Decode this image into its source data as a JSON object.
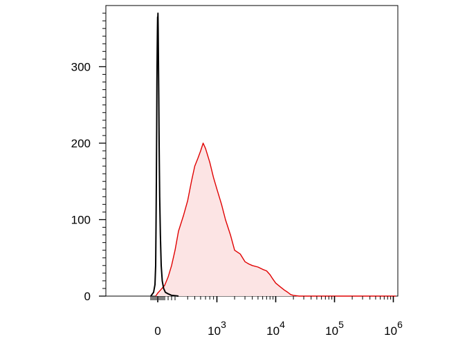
{
  "chart_data": {
    "type": "area",
    "title": "",
    "xlabel": "",
    "ylabel": "",
    "x_scale": "biexponential",
    "xlim": [
      -100,
      1200000
    ],
    "ylim": [
      0,
      380
    ],
    "yticks": [
      {
        "value": 0,
        "label": "0"
      },
      {
        "value": 100,
        "label": "100"
      },
      {
        "value": 200,
        "label": "200"
      },
      {
        "value": 300,
        "label": "300"
      }
    ],
    "xticks": [
      {
        "value": 0,
        "label": "0",
        "base": "0",
        "exp": ""
      },
      {
        "value": 1000,
        "label": "10^3",
        "base": "10",
        "exp": "3"
      },
      {
        "value": 10000,
        "label": "10^4",
        "base": "10",
        "exp": "4"
      },
      {
        "value": 100000,
        "label": "10^5",
        "base": "10",
        "exp": "5"
      },
      {
        "value": 1000000,
        "label": "10^6",
        "base": "10",
        "exp": "6"
      }
    ],
    "series": [
      {
        "color": "#000000",
        "filled": false,
        "points": [
          [
            -100,
            0
          ],
          [
            -60,
            5
          ],
          [
            -40,
            15
          ],
          [
            -30,
            40
          ],
          [
            -25,
            90
          ],
          [
            -20,
            150
          ],
          [
            -15,
            220
          ],
          [
            -12,
            280
          ],
          [
            -8,
            320
          ],
          [
            -5,
            345
          ],
          [
            -2,
            365
          ],
          [
            0,
            360
          ],
          [
            3,
            370
          ],
          [
            6,
            350
          ],
          [
            10,
            310
          ],
          [
            15,
            260
          ],
          [
            20,
            200
          ],
          [
            28,
            130
          ],
          [
            38,
            80
          ],
          [
            50,
            40
          ],
          [
            65,
            20
          ],
          [
            85,
            10
          ],
          [
            110,
            5
          ],
          [
            150,
            3
          ],
          [
            200,
            1
          ],
          [
            300,
            0
          ]
        ]
      },
      {
        "color": "#e00000",
        "fill": "#fce4e4",
        "filled": true,
        "points": [
          [
            -30,
            0
          ],
          [
            0,
            4
          ],
          [
            40,
            8
          ],
          [
            100,
            14
          ],
          [
            150,
            25
          ],
          [
            200,
            40
          ],
          [
            250,
            60
          ],
          [
            300,
            85
          ],
          [
            350,
            105
          ],
          [
            400,
            125
          ],
          [
            450,
            150
          ],
          [
            500,
            170
          ],
          [
            550,
            180
          ],
          [
            600,
            190
          ],
          [
            650,
            200
          ],
          [
            700,
            193
          ],
          [
            800,
            175
          ],
          [
            900,
            155
          ],
          [
            1000,
            140
          ],
          [
            1200,
            120
          ],
          [
            1400,
            100
          ],
          [
            1700,
            80
          ],
          [
            2000,
            60
          ],
          [
            2500,
            55
          ],
          [
            3000,
            45
          ],
          [
            3500,
            42
          ],
          [
            4000,
            40
          ],
          [
            5000,
            38
          ],
          [
            6000,
            35
          ],
          [
            7000,
            33
          ],
          [
            8000,
            28
          ],
          [
            9000,
            22
          ],
          [
            10000,
            17
          ],
          [
            12000,
            12
          ],
          [
            14000,
            8
          ],
          [
            16000,
            5
          ],
          [
            18000,
            2
          ],
          [
            20000,
            1
          ],
          [
            25000,
            0
          ],
          [
            1100000,
            0
          ]
        ]
      }
    ]
  }
}
